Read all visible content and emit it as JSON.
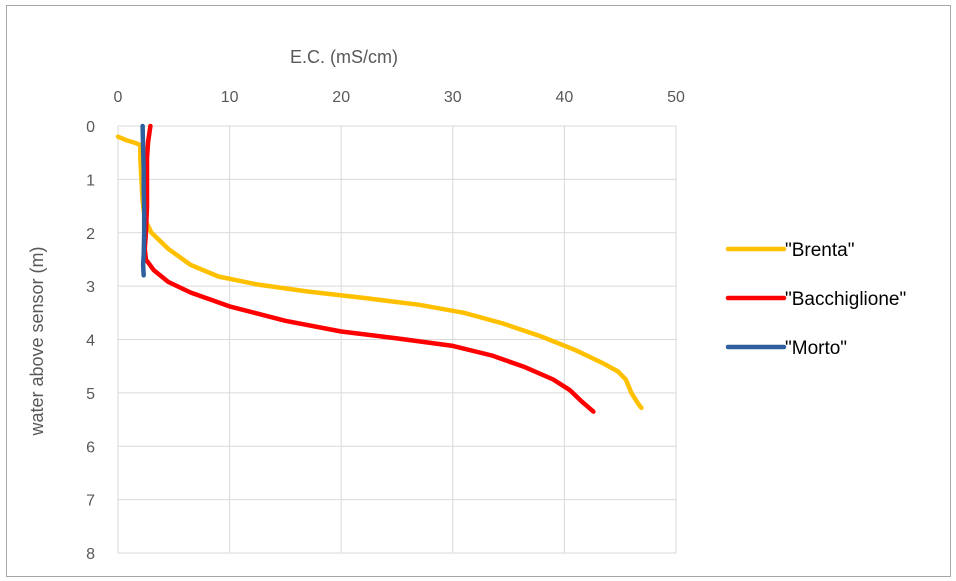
{
  "chart_data": {
    "type": "line",
    "xlabel": "E.C. (mS/cm)",
    "ylabel": "water above sensor (m)",
    "xlim": [
      0,
      50
    ],
    "ylim": [
      0,
      8
    ],
    "y_inverted": true,
    "x_axis_position": "top",
    "x_ticks": [
      0,
      10,
      20,
      30,
      40,
      50
    ],
    "y_ticks": [
      0,
      1,
      2,
      3,
      4,
      5,
      6,
      7,
      8
    ],
    "grid": true,
    "legend_position": "right",
    "series": [
      {
        "name": "\"Brenta\"",
        "color": "#ffc000",
        "points": [
          [
            0,
            0.2
          ],
          [
            0.8,
            0.27
          ],
          [
            1.6,
            0.32
          ],
          [
            2.0,
            0.36
          ],
          [
            2.0,
            0.6
          ],
          [
            2.1,
            1.0
          ],
          [
            2.2,
            1.4
          ],
          [
            2.4,
            1.75
          ],
          [
            3.0,
            2.0
          ],
          [
            4.5,
            2.3
          ],
          [
            6.5,
            2.6
          ],
          [
            9.0,
            2.82
          ],
          [
            12.5,
            2.97
          ],
          [
            17.0,
            3.1
          ],
          [
            22.0,
            3.22
          ],
          [
            27.0,
            3.35
          ],
          [
            31.0,
            3.5
          ],
          [
            34.5,
            3.7
          ],
          [
            38.0,
            3.95
          ],
          [
            41.0,
            4.2
          ],
          [
            43.5,
            4.45
          ],
          [
            44.8,
            4.6
          ],
          [
            45.5,
            4.75
          ],
          [
            46.0,
            5.0
          ],
          [
            46.6,
            5.2
          ],
          [
            46.9,
            5.28
          ]
        ]
      },
      {
        "name": "\"Bacchiglione\"",
        "color": "#ff0000",
        "points": [
          [
            2.9,
            0.0
          ],
          [
            2.7,
            0.3
          ],
          [
            2.6,
            0.6
          ],
          [
            2.6,
            1.0
          ],
          [
            2.6,
            1.5
          ],
          [
            2.5,
            2.0
          ],
          [
            2.4,
            2.3
          ],
          [
            2.5,
            2.5
          ],
          [
            3.2,
            2.7
          ],
          [
            4.5,
            2.92
          ],
          [
            6.5,
            3.12
          ],
          [
            10.0,
            3.38
          ],
          [
            15.0,
            3.65
          ],
          [
            20.0,
            3.85
          ],
          [
            25.0,
            3.98
          ],
          [
            30.0,
            4.12
          ],
          [
            33.5,
            4.3
          ],
          [
            36.5,
            4.52
          ],
          [
            39.0,
            4.75
          ],
          [
            40.5,
            4.95
          ],
          [
            41.5,
            5.15
          ],
          [
            42.6,
            5.35
          ]
        ]
      },
      {
        "name": "\"Morto\"",
        "color": "#2e5f9e",
        "points": [
          [
            2.2,
            0.0
          ],
          [
            2.25,
            0.4
          ],
          [
            2.3,
            0.8
          ],
          [
            2.3,
            1.2
          ],
          [
            2.35,
            1.6
          ],
          [
            2.35,
            2.0
          ],
          [
            2.3,
            2.4
          ],
          [
            2.25,
            2.6
          ],
          [
            2.3,
            2.8
          ]
        ]
      }
    ]
  }
}
